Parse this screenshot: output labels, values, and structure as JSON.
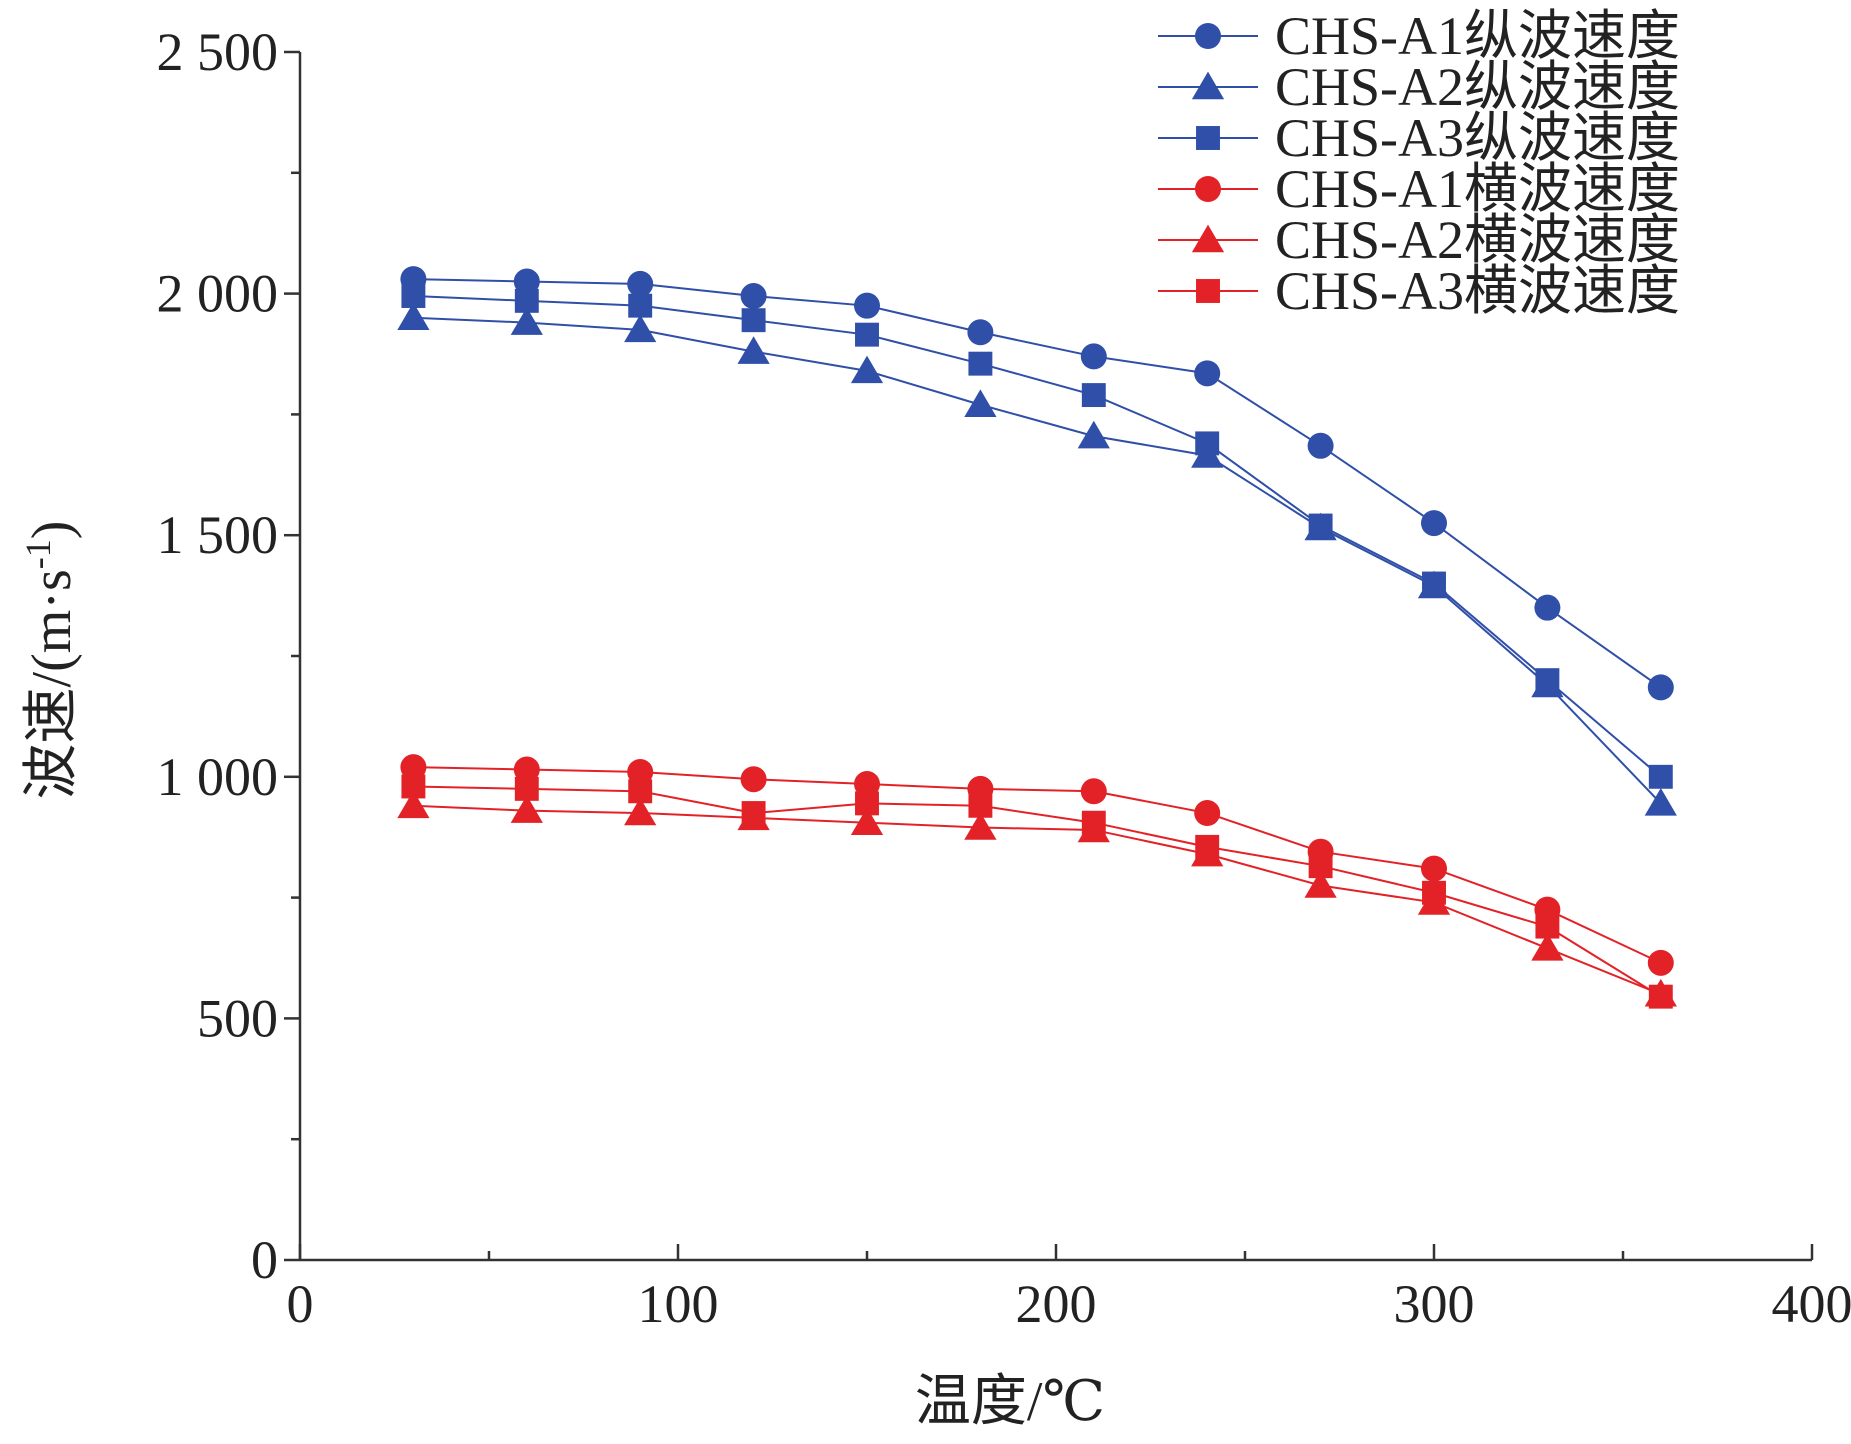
{
  "chart_data": {
    "type": "line",
    "xlabel": "温度/℃",
    "ylabel": "波速/(m·s",
    "ylabel_sup": "-1",
    "ylabel_close": ")",
    "xlim": [
      0,
      400
    ],
    "ylim": [
      0,
      2500
    ],
    "x_ticks": [
      "0",
      "100",
      "200",
      "300",
      "400"
    ],
    "y_ticks": [
      "0",
      "500",
      "1 000",
      "1 500",
      "2 000",
      "2 500"
    ],
    "grid": false,
    "legend_position": "top-right",
    "x": [
      30,
      60,
      90,
      120,
      150,
      180,
      210,
      240,
      270,
      300,
      330,
      360
    ],
    "series": [
      {
        "name": "CHS-A1纵波速度",
        "color": "#2f4fa8",
        "marker": "circle",
        "values": [
          2030,
          2025,
          2020,
          1995,
          1975,
          1920,
          1870,
          1835,
          1685,
          1525,
          1350,
          1185
        ]
      },
      {
        "name": "CHS-A2纵波速度",
        "color": "#2f4fa8",
        "marker": "triangle",
        "values": [
          1950,
          1940,
          1925,
          1880,
          1840,
          1770,
          1705,
          1665,
          1515,
          1395,
          1190,
          945
        ]
      },
      {
        "name": "CHS-A3纵波速度",
        "color": "#2f4fa8",
        "marker": "square",
        "values": [
          1995,
          1985,
          1975,
          1945,
          1915,
          1855,
          1790,
          1690,
          1520,
          1400,
          1200,
          1000
        ]
      },
      {
        "name": "CHS-A1横波速度",
        "color": "#e32227",
        "marker": "circle",
        "values": [
          1020,
          1015,
          1010,
          995,
          985,
          975,
          970,
          925,
          845,
          810,
          725,
          615
        ]
      },
      {
        "name": "CHS-A2横波速度",
        "color": "#e32227",
        "marker": "triangle",
        "values": [
          940,
          930,
          925,
          915,
          905,
          895,
          890,
          840,
          775,
          740,
          645,
          550
        ]
      },
      {
        "name": "CHS-A3横波速度",
        "color": "#e32227",
        "marker": "square",
        "values": [
          980,
          975,
          970,
          925,
          945,
          940,
          905,
          855,
          815,
          760,
          690,
          545
        ]
      }
    ]
  }
}
